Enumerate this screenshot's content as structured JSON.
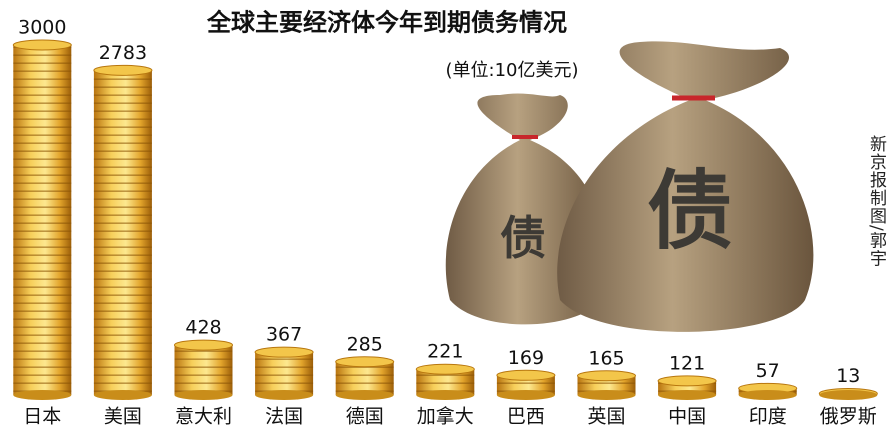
{
  "chart_data": {
    "type": "bar",
    "title": "全球主要经济体今年到期债务情况",
    "subtitle": "(单位:10亿美元)",
    "credit": "新京报制图/郭宇",
    "bag_labels": [
      "债",
      "债"
    ],
    "categories": [
      "日本",
      "美国",
      "意大利",
      "法国",
      "德国",
      "加拿大",
      "巴西",
      "英国",
      "中国",
      "印度",
      "俄罗斯"
    ],
    "values": [
      3000,
      2783,
      428,
      367,
      285,
      221,
      169,
      165,
      121,
      57,
      13
    ],
    "color": "#e0a526"
  }
}
